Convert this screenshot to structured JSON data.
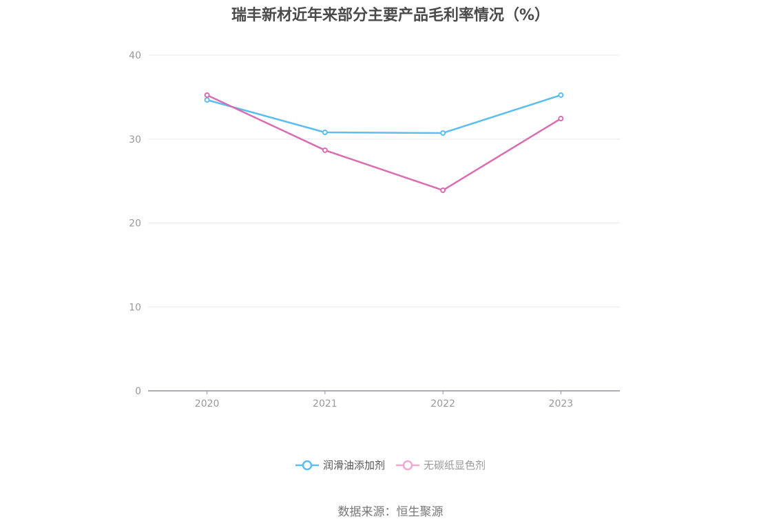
{
  "title": "瑞丰新材近年来部分主要产品毛利率情况（%）",
  "source": "数据来源：恒生聚源",
  "legend": [
    {
      "label": "润滑油添加剂",
      "color": "#5bbdf0",
      "text_color": "#555555"
    },
    {
      "label": "无碳纸显色剂",
      "color": "#f0a8d0",
      "text_color": "#999999"
    }
  ],
  "chart_data": {
    "type": "line",
    "title": "瑞丰新材近年来部分主要产品毛利率情况（%）",
    "xlabel": "",
    "ylabel": "",
    "categories": [
      "2020",
      "2021",
      "2022",
      "2023"
    ],
    "series": [
      {
        "name": "润滑油添加剂",
        "color": "#5bbdf0",
        "values": [
          34.66,
          30.8,
          30.72,
          35.24
        ]
      },
      {
        "name": "无碳纸显色剂",
        "color": "#d96db0",
        "values": [
          35.24,
          28.67,
          23.9,
          32.44
        ]
      }
    ],
    "ylim": [
      0,
      40
    ],
    "yticks": [
      0,
      10,
      20,
      30,
      40
    ],
    "grid": true,
    "legend_position": "bottom"
  }
}
